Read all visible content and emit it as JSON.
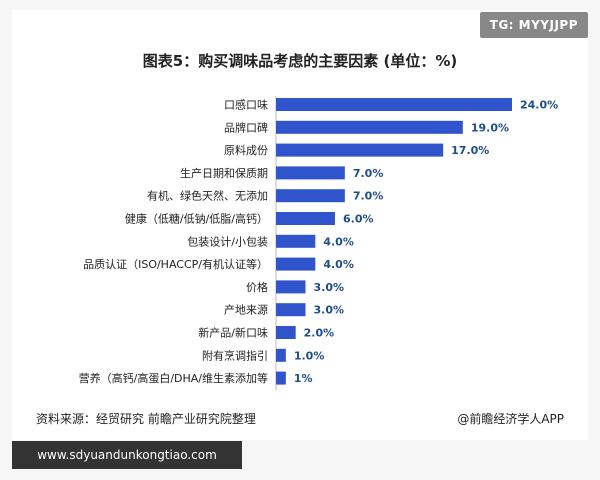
{
  "watermark_tag": "TG: MYYJJPP",
  "colors": {
    "bar": "#2f54cc",
    "value_text": "#1e4d8c",
    "label_text": "#222222"
  },
  "chart_data": {
    "type": "bar",
    "orientation": "horizontal",
    "title": "图表5：购买调味品考虑的主要因素 (单位：%)",
    "categories": [
      "口感口味",
      "品牌口碑",
      "原料成份",
      "生产日期和保质期",
      "有机、绿色天然、无添加",
      "健康（低糖/低钠/低脂/高钙）",
      "包装设计/小包装",
      "品质认证（ISO/HACCP/有机认证等）",
      "价格",
      "产地来源",
      "新产品/新口味",
      "附有烹调指引",
      "营养（高钙/高蛋白/DHA/维生素添加等"
    ],
    "values": [
      24.0,
      19.0,
      17.0,
      7.0,
      7.0,
      6.0,
      4.0,
      4.0,
      3.0,
      3.0,
      2.0,
      1.0,
      1.0
    ],
    "value_labels": [
      "24.0%",
      "19.0%",
      "17.0%",
      "7.0%",
      "7.0%",
      "6.0%",
      "4.0%",
      "4.0%",
      "3.0%",
      "3.0%",
      "2.0%",
      "1.0%",
      "1%"
    ],
    "xlim": [
      0,
      24
    ],
    "grid": false,
    "legend": "none"
  },
  "source_text": "资料来源：经贸研究 前瞻产业研究院整理",
  "credit_text": "@前瞻经济学人APP",
  "footer_url": "www.sdyuandunkongtiao.com"
}
